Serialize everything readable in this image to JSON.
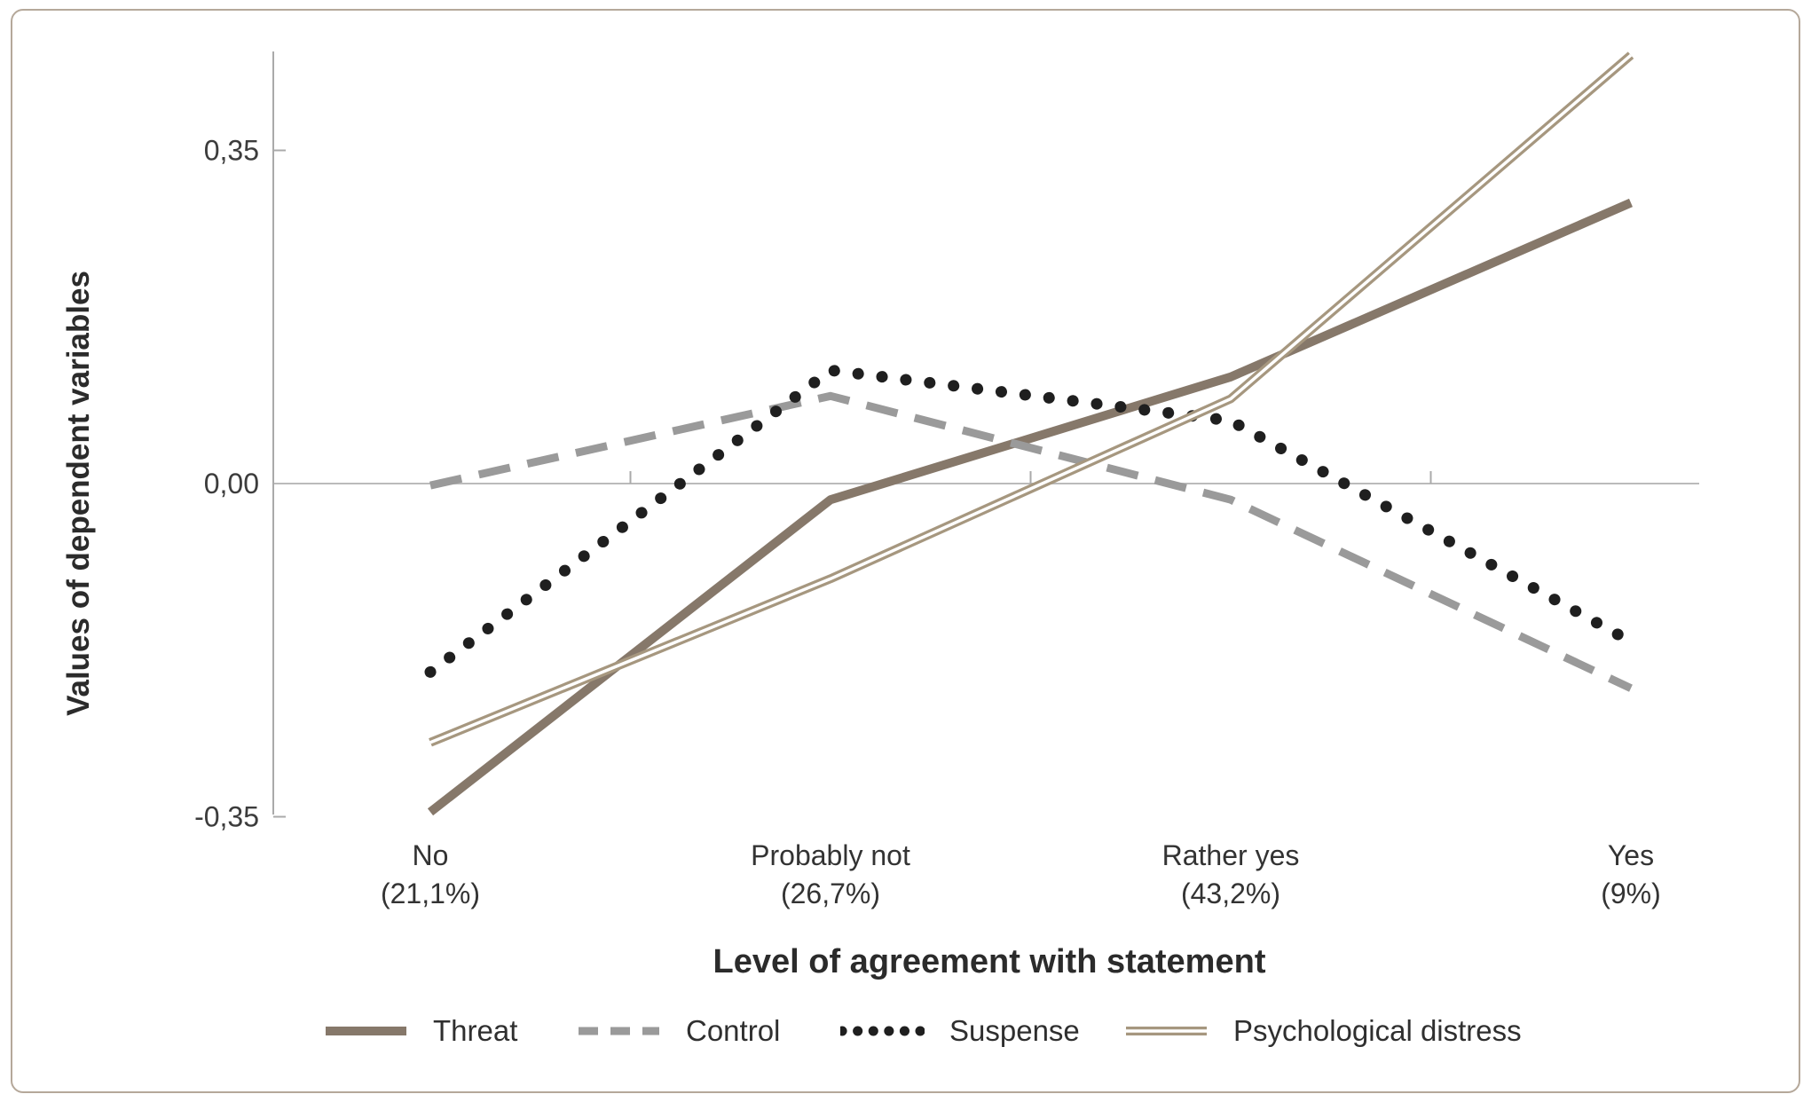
{
  "chart_data": {
    "type": "line",
    "title": "",
    "xlabel": "Level of agreement with statement",
    "ylabel": "Values of dependent variables",
    "categories": [
      "No",
      "Probably not",
      "Rather yes",
      "Yes"
    ],
    "category_sublabels": [
      "(21,1%)",
      "(26,7%)",
      "(43,2%)",
      "(9%)"
    ],
    "yticks": [
      {
        "label": "0,35",
        "value": 0.35
      },
      {
        "label": "0,00",
        "value": 0.0
      },
      {
        "label": "-0,35",
        "value": -0.35
      }
    ],
    "ylim": [
      -0.42,
      0.47
    ],
    "grid": "zero-line-only",
    "legend_position": "bottom",
    "series": [
      {
        "name": "Threat",
        "style": "solid-thick",
        "color": "#86786a",
        "values": [
          -0.345,
          -0.017,
          0.112,
          0.295
        ]
      },
      {
        "name": "Control",
        "style": "dashed",
        "color": "#9a9a9a",
        "values": [
          -0.002,
          0.092,
          -0.017,
          -0.215
        ]
      },
      {
        "name": "Suspense",
        "style": "dotted",
        "color": "#1f1f1f",
        "values": [
          -0.198,
          0.119,
          0.066,
          -0.166
        ]
      },
      {
        "name": "Psychological distress",
        "style": "double-line",
        "color": "#a6977f",
        "values": [
          -0.272,
          -0.1,
          0.089,
          0.45
        ]
      }
    ]
  },
  "card": {
    "border_color": "#b5a89a",
    "background": "#ffffff"
  }
}
